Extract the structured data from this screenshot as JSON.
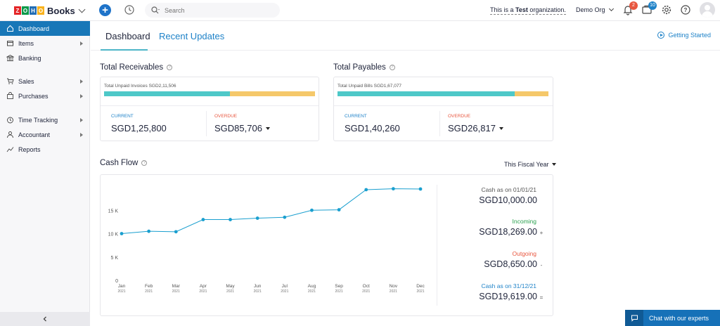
{
  "brand": {
    "name": "Books",
    "logo_letters": [
      "Z",
      "O",
      "H",
      "O"
    ],
    "logo_colors": [
      "#e42527",
      "#089949",
      "#226db4",
      "#f9b21d"
    ]
  },
  "topbar": {
    "search_placeholder": "Search",
    "org_note_prefix": "This is a ",
    "org_note_bold": "Test",
    "org_note_suffix": " organization.",
    "org_name": "Demo Org",
    "notifications_count": "2",
    "updates_count": "10",
    "notifications_badge_color": "#e8573f",
    "updates_badge_color": "#1e82c8"
  },
  "sidebar": {
    "items": [
      {
        "label": "Dashboard",
        "icon": "home-icon",
        "active": true,
        "has_arrow": false
      },
      {
        "label": "Items",
        "icon": "items-icon",
        "active": false,
        "has_arrow": true
      },
      {
        "label": "Banking",
        "icon": "bank-icon",
        "active": false,
        "has_arrow": false
      },
      {
        "label": "Sales",
        "icon": "cart-icon",
        "active": false,
        "has_arrow": true
      },
      {
        "label": "Purchases",
        "icon": "bag-icon",
        "active": false,
        "has_arrow": true
      },
      {
        "label": "Time Tracking",
        "icon": "clock-icon",
        "active": false,
        "has_arrow": true
      },
      {
        "label": "Accountant",
        "icon": "person-icon",
        "active": false,
        "has_arrow": true
      },
      {
        "label": "Reports",
        "icon": "chart-icon",
        "active": false,
        "has_arrow": false
      }
    ]
  },
  "tabs": {
    "dashboard": "Dashboard",
    "recent_updates": "Recent Updates"
  },
  "getting_started": "Getting Started",
  "receivables": {
    "title": "Total Receivables",
    "unpaid_label": "Total Unpaid Invoices SGD2,11,506",
    "current_label": "CURRENT",
    "current_value": "SGD1,25,800",
    "overdue_label": "OVERDUE",
    "overdue_value": "SGD85,706",
    "current_fraction": 0.595
  },
  "payables": {
    "title": "Total Payables",
    "unpaid_label": "Total Unpaid Bills SGD1,67,077",
    "current_label": "CURRENT",
    "current_value": "SGD1,40,260",
    "overdue_label": "OVERDUE",
    "overdue_value": "SGD26,817",
    "current_fraction": 0.84
  },
  "cashflow": {
    "title": "Cash Flow",
    "period": "This Fiscal Year",
    "summary": {
      "opening_label": "Cash as on 01/01/21",
      "opening_value": "SGD10,000.00",
      "incoming_label": "Incoming",
      "incoming_value": "SGD18,269.00",
      "incoming_sign": "+",
      "outgoing_label": "Outgoing",
      "outgoing_value": "SGD8,650.00",
      "outgoing_sign": "-",
      "closing_label": "Cash as on 31/12/21",
      "closing_value": "SGD19,619.00",
      "closing_sign": "=",
      "opening_color": "#555555",
      "incoming_color": "#2aa04f",
      "outgoing_color": "#e8573f",
      "closing_color": "#1e82c8"
    }
  },
  "chat_label": "Chat with our experts",
  "chart_data": {
    "type": "line",
    "title": "Cash Flow",
    "categories": [
      "Jan",
      "Feb",
      "Mar",
      "Apr",
      "May",
      "Jun",
      "Jul",
      "Aug",
      "Sep",
      "Oct",
      "Nov",
      "Dec"
    ],
    "category_year": "2021",
    "ytick_labels": [
      "0",
      "5 K",
      "10 K",
      "15 K"
    ],
    "ylim": [
      0,
      20000
    ],
    "series": [
      {
        "values": [
          10000,
          10500,
          10400,
          13000,
          13000,
          13300,
          13500,
          15000,
          15100,
          19400,
          19600,
          19550
        ],
        "color": "#1a9fcf"
      }
    ],
    "grid": false
  }
}
